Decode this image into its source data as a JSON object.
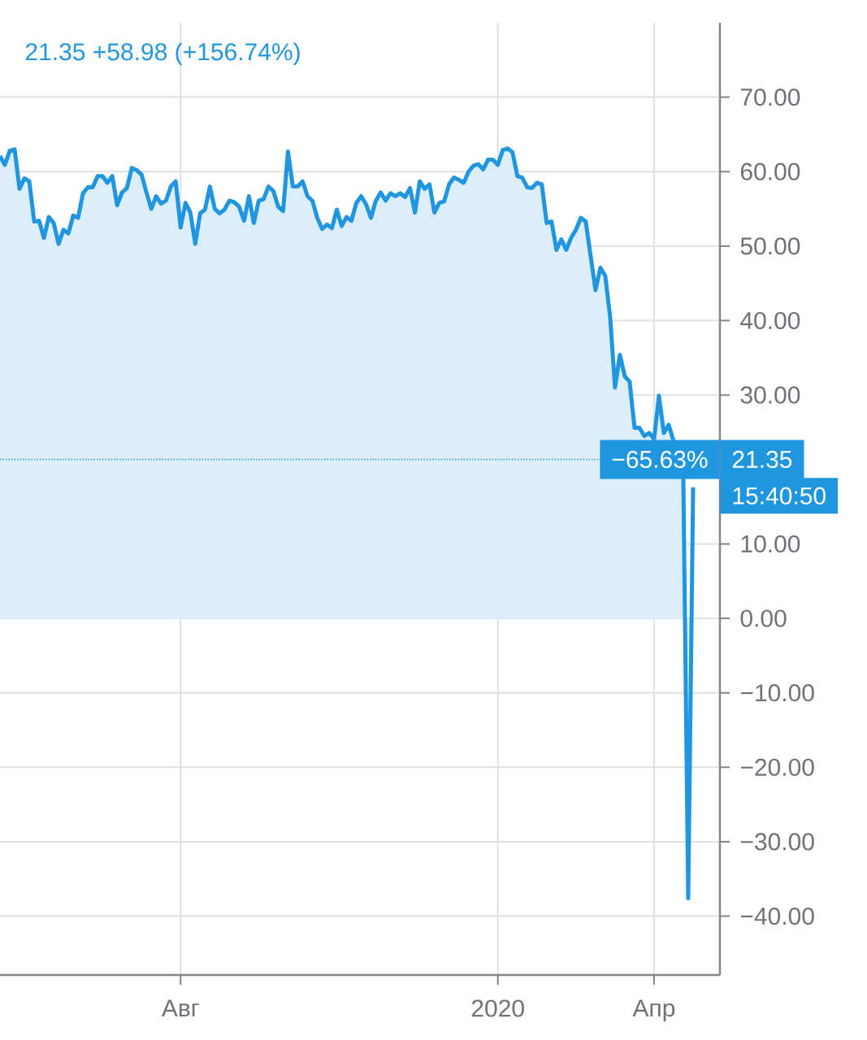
{
  "chart_data": {
    "type": "area",
    "color": "#2196e0",
    "annotations": [
      "21.35  +58.98 (+156.74%)",
      "−65.63%",
      "15:40:50"
    ],
    "categories": [
      null,
      null,
      null,
      null,
      null,
      null,
      null,
      null,
      null,
      null,
      null,
      null,
      null,
      null,
      null,
      null,
      null,
      null,
      null,
      null,
      null,
      null,
      null,
      null,
      null,
      null,
      null,
      null,
      null,
      null,
      null,
      null,
      null,
      null,
      null,
      null,
      null,
      "Авг",
      null,
      null,
      null,
      null,
      null,
      null,
      null,
      null,
      null,
      null,
      null,
      null,
      null,
      null,
      null,
      null,
      null,
      null,
      null,
      null,
      null,
      null,
      null,
      null,
      null,
      null,
      null,
      null,
      null,
      null,
      null,
      null,
      null,
      null,
      null,
      null,
      null,
      null,
      null,
      null,
      null,
      null,
      null,
      null,
      null,
      null,
      null,
      null,
      null,
      null,
      null,
      null,
      null,
      null,
      null,
      null,
      null,
      null,
      null,
      null,
      null,
      null,
      null,
      null,
      "2020",
      null,
      null,
      null,
      null,
      null,
      null,
      null,
      null,
      null,
      null,
      null,
      null,
      null,
      null,
      null,
      null,
      null,
      null,
      null,
      null,
      null,
      null,
      null,
      null,
      null,
      null,
      null,
      null,
      null,
      null,
      null,
      "Апр",
      null,
      null,
      null,
      null,
      null,
      null,
      null,
      null
    ],
    "values": [
      62.1,
      60.9,
      62.8,
      63.0,
      57.7,
      59.1,
      58.7,
      53.3,
      53.4,
      51.1,
      53.9,
      53.1,
      50.3,
      52.2,
      51.7,
      54.1,
      53.8,
      57.1,
      57.9,
      57.9,
      59.4,
      59.4,
      58.5,
      59.4,
      55.5,
      57.2,
      57.8,
      60.5,
      60.2,
      59.6,
      57.2,
      55.0,
      56.7,
      55.7,
      56.1,
      58.0,
      58.7,
      52.5,
      55.8,
      54.5,
      50.3,
      54.4,
      54.9,
      58.0,
      55.0,
      54.4,
      54.9,
      56.1,
      55.9,
      55.3,
      53.4,
      56.7,
      53.1,
      56.1,
      56.3,
      58.0,
      57.4,
      55.3,
      54.7,
      62.7,
      58.0,
      58.0,
      58.7,
      56.7,
      56.1,
      53.8,
      52.3,
      52.9,
      52.4,
      54.9,
      52.7,
      53.9,
      53.4,
      55.8,
      56.7,
      55.6,
      53.8,
      56.1,
      57.2,
      56.1,
      57.1,
      56.7,
      57.1,
      56.6,
      57.8,
      54.5,
      58.7,
      57.7,
      58.3,
      54.5,
      55.8,
      56.0,
      58.3,
      59.2,
      58.9,
      58.5,
      60.0,
      60.8,
      61.0,
      60.3,
      61.6,
      61.6,
      60.9,
      62.9,
      63.1,
      62.6,
      59.4,
      59.2,
      57.9,
      57.8,
      58.5,
      58.3,
      53.1,
      53.3,
      49.5,
      50.9,
      49.5,
      51.1,
      52.2,
      53.8,
      53.3,
      48.7,
      44.1,
      47.1,
      46.0,
      40.5,
      31.0,
      35.4,
      32.5,
      31.8,
      25.6,
      25.6,
      24.5,
      24.9,
      24.1,
      29.9,
      24.9,
      26.0,
      23.8,
      null,
      18.7,
      -37.6,
      17.6
    ],
    "ylim": [
      -47.9,
      80
    ],
    "yticks": [
      {
        "value": -40,
        "label": "−40.00"
      },
      {
        "value": -30,
        "label": "−30.00"
      },
      {
        "value": -20,
        "label": "−20.00"
      },
      {
        "value": -10,
        "label": "−10.00"
      },
      {
        "value": 0,
        "label": "0.00"
      },
      {
        "value": 10,
        "label": "10.00"
      },
      {
        "value": 30,
        "label": "30.00"
      },
      {
        "value": 40,
        "label": "40.00"
      },
      {
        "value": 50,
        "label": "50.00"
      },
      {
        "value": 60,
        "label": "60.00"
      },
      {
        "value": 70,
        "label": "70.00"
      }
    ],
    "ref_lines": [
      {
        "axis": "y",
        "value": 21.35,
        "label": "21.35",
        "color": "#2196e0",
        "line_style": "dotted"
      }
    ],
    "grid": true
  }
}
